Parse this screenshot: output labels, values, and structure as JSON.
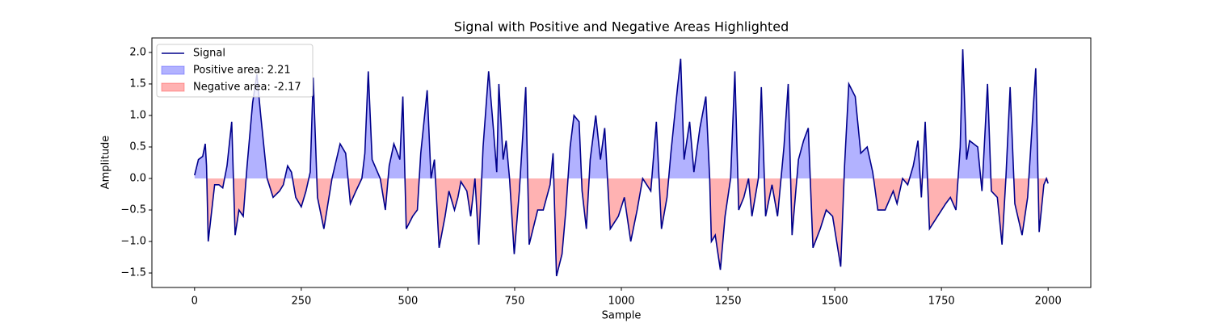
{
  "chart_data": {
    "type": "filled-line",
    "title": "Signal with Positive and Negative Areas Highlighted",
    "x_label": "Sample",
    "y_label": "Amplitude",
    "x": [
      0,
      9,
      19,
      25,
      28,
      32,
      42,
      47,
      57,
      66,
      76,
      87,
      95,
      104,
      114,
      123,
      136,
      146,
      155,
      170,
      184,
      199,
      208,
      218,
      227,
      237,
      250,
      261,
      271,
      278,
      288,
      303,
      322,
      341,
      354,
      365,
      378,
      392,
      399,
      407,
      416,
      435,
      447,
      456,
      467,
      481,
      488,
      496,
      511,
      522,
      530,
      545,
      554,
      562,
      573,
      587,
      596,
      609,
      617,
      624,
      638,
      647,
      657,
      666,
      676,
      689,
      700,
      708,
      713,
      723,
      730,
      738,
      749,
      761,
      776,
      784,
      804,
      817,
      833,
      840,
      848,
      861,
      870,
      880,
      889,
      901,
      908,
      918,
      927,
      940,
      951,
      961,
      974,
      993,
      1007,
      1022,
      1037,
      1050,
      1069,
      1082,
      1094,
      1107,
      1116,
      1131,
      1139,
      1147,
      1160,
      1170,
      1184,
      1198,
      1207,
      1211,
      1220,
      1232,
      1243,
      1256,
      1266,
      1275,
      1287,
      1298,
      1306,
      1321,
      1328,
      1338,
      1353,
      1366,
      1381,
      1391,
      1400,
      1415,
      1427,
      1438,
      1449,
      1466,
      1480,
      1495,
      1514,
      1523,
      1533,
      1548,
      1561,
      1576,
      1589,
      1601,
      1618,
      1637,
      1646,
      1659,
      1671,
      1684,
      1695,
      1703,
      1712,
      1722,
      1741,
      1760,
      1771,
      1784,
      1794,
      1800,
      1809,
      1816,
      1835,
      1845,
      1858,
      1867,
      1881,
      1892,
      1901,
      1911,
      1922,
      1939,
      1952,
      1971,
      1979,
      1990,
      1996,
      2000
    ],
    "series": [
      {
        "name": "Signal",
        "color": "#00008b",
        "values": [
          0.05,
          0.3,
          0.35,
          0.55,
          0.2,
          -1.0,
          -0.4,
          -0.1,
          -0.1,
          -0.15,
          0.2,
          0.9,
          -0.9,
          -0.5,
          -0.6,
          0.2,
          1.2,
          1.65,
          1.0,
          0.0,
          -0.3,
          -0.2,
          -0.1,
          0.2,
          0.1,
          -0.3,
          -0.45,
          -0.2,
          0.1,
          1.6,
          -0.3,
          -0.8,
          0.0,
          0.55,
          0.4,
          -0.4,
          -0.2,
          0.0,
          0.4,
          1.7,
          0.3,
          0.0,
          -0.5,
          0.2,
          0.55,
          0.3,
          1.3,
          -0.8,
          -0.6,
          -0.5,
          0.4,
          1.4,
          0.0,
          0.3,
          -1.1,
          -0.6,
          -0.2,
          -0.5,
          -0.3,
          -0.05,
          -0.2,
          -0.6,
          0.0,
          -1.05,
          0.5,
          1.7,
          0.8,
          0.1,
          1.5,
          0.3,
          0.6,
          0.0,
          -1.2,
          -0.2,
          1.45,
          -1.05,
          -0.5,
          -0.5,
          -0.1,
          0.4,
          -1.55,
          -1.2,
          -0.5,
          0.5,
          1.0,
          0.9,
          -0.2,
          -0.8,
          0.3,
          1.0,
          0.3,
          0.8,
          -0.8,
          -0.6,
          -0.3,
          -1.0,
          -0.5,
          0.0,
          -0.2,
          0.9,
          -0.8,
          -0.3,
          0.4,
          1.4,
          1.9,
          0.3,
          0.9,
          0.1,
          0.8,
          1.3,
          0.0,
          -1.0,
          -0.9,
          -1.45,
          -0.6,
          0.0,
          1.7,
          -0.5,
          -0.3,
          0.0,
          -0.6,
          0.0,
          1.45,
          -0.6,
          -0.1,
          -0.6,
          0.5,
          1.5,
          -0.9,
          0.3,
          0.6,
          0.8,
          -1.1,
          -0.8,
          -0.5,
          -0.6,
          -1.4,
          0.2,
          1.5,
          1.3,
          0.4,
          0.5,
          0.1,
          -0.5,
          -0.5,
          -0.2,
          -0.4,
          0.0,
          -0.1,
          0.2,
          0.6,
          -0.3,
          0.9,
          -0.8,
          -0.6,
          -0.4,
          -0.3,
          -0.5,
          0.5,
          2.05,
          0.3,
          0.6,
          0.5,
          -0.2,
          1.5,
          -0.2,
          -0.3,
          -1.05,
          0.0,
          1.45,
          -0.4,
          -0.9,
          -0.3,
          1.75,
          -0.85,
          -0.1,
          0.0,
          -0.08
        ]
      }
    ],
    "fills": [
      {
        "label": "Positive area: 2.21",
        "color": "#0000ff",
        "side": "positive"
      },
      {
        "label": "Negative area: -2.17",
        "color": "#ff0000",
        "side": "negative"
      }
    ],
    "xlim": [
      -100,
      2100
    ],
    "ylim": [
      -1.73,
      2.23
    ],
    "xticks": [
      0,
      250,
      500,
      750,
      1000,
      1250,
      1500,
      1750,
      2000
    ],
    "yticks": [
      {
        "value": 2.0,
        "label": "2.0"
      },
      {
        "value": 1.5,
        "label": "1.5"
      },
      {
        "value": 1.0,
        "label": "1.0"
      },
      {
        "value": 0.5,
        "label": "0.5"
      },
      {
        "value": 0.0,
        "label": "0.0"
      },
      {
        "value": -0.5,
        "label": "−0.5"
      },
      {
        "value": -1.0,
        "label": "−1.0"
      },
      {
        "value": -1.5,
        "label": "−1.5"
      }
    ],
    "legend": "upper left"
  }
}
